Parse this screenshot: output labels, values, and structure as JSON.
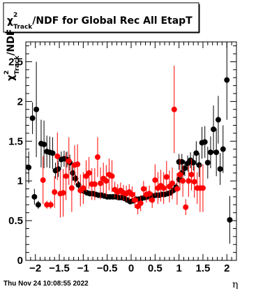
{
  "chart_data": {
    "type": "scatter",
    "title": {
      "chi": "χ",
      "sup": "2",
      "sub": "Track",
      "rest": "/NDF for Global Rec All EtapT"
    },
    "xlabel": "η",
    "ylabel": {
      "chi": "χ",
      "sup": "2",
      "sub": "Track",
      "rest": "/NDF"
    },
    "xlim": [
      -2.2,
      2.2
    ],
    "ylim": [
      0,
      2.75
    ],
    "xticks": [
      -2,
      -1.5,
      -1,
      -0.5,
      0,
      0.5,
      1,
      1.5,
      2
    ],
    "xtick_labels": [
      "−2",
      "−1.5",
      "−1",
      "−0.5",
      "0",
      "0.5",
      "1",
      "1.5",
      "2"
    ],
    "yticks": [
      0,
      0.5,
      1,
      1.5,
      2,
      2.5
    ],
    "ytick_labels": [
      "0",
      "0.5",
      "1",
      "1.5",
      "2",
      "2.5"
    ],
    "grid": false,
    "timestamp": "Thu Nov 24 10:08:55 2022",
    "series": [
      {
        "color": "#000000",
        "points": [
          {
            "x": -2.14,
            "y": 1.17,
            "e": 0.2
          },
          {
            "x": -2.06,
            "y": 1.79,
            "e": 0.2
          },
          {
            "x": -2.02,
            "y": 0.8,
            "e": 0.1
          },
          {
            "x": -1.98,
            "y": 1.9,
            "e": 0.6
          },
          {
            "x": -1.94,
            "y": 0.7,
            "e": 0.05
          },
          {
            "x": -1.88,
            "y": 1.47,
            "e": 0.3
          },
          {
            "x": -1.82,
            "y": 1.46,
            "e": 0.3
          },
          {
            "x": -1.76,
            "y": 1.37,
            "e": 0.2
          },
          {
            "x": -1.7,
            "y": 1.36,
            "e": 0.2
          },
          {
            "x": -1.64,
            "y": 1.35,
            "e": 0.2
          },
          {
            "x": -1.58,
            "y": 1.13,
            "e": 0.1
          },
          {
            "x": -1.52,
            "y": 1.15,
            "e": 0.1
          },
          {
            "x": -1.46,
            "y": 1.27,
            "e": 0.1
          },
          {
            "x": -1.4,
            "y": 1.28,
            "e": 0.1
          },
          {
            "x": -1.34,
            "y": 1.27,
            "e": 0.1
          },
          {
            "x": -1.28,
            "y": 1.23,
            "e": 0.1
          },
          {
            "x": -1.22,
            "y": 1.1,
            "e": 0.1
          },
          {
            "x": -1.16,
            "y": 1.03,
            "e": 0.05
          },
          {
            "x": -1.1,
            "y": 0.95,
            "e": 0.05
          },
          {
            "x": -1.04,
            "y": 0.88,
            "e": 0.03
          },
          {
            "x": -0.98,
            "y": 0.87,
            "e": 0.03
          },
          {
            "x": -0.92,
            "y": 0.85,
            "e": 0.03
          },
          {
            "x": -0.86,
            "y": 0.84,
            "e": 0.03
          },
          {
            "x": -0.8,
            "y": 0.84,
            "e": 0.03
          },
          {
            "x": -0.74,
            "y": 0.83,
            "e": 0.03
          },
          {
            "x": -0.68,
            "y": 0.82,
            "e": 0.03
          },
          {
            "x": -0.62,
            "y": 0.82,
            "e": 0.03
          },
          {
            "x": -0.56,
            "y": 0.81,
            "e": 0.03
          },
          {
            "x": -0.5,
            "y": 0.8,
            "e": 0.03
          },
          {
            "x": -0.44,
            "y": 0.8,
            "e": 0.03
          },
          {
            "x": -0.38,
            "y": 0.8,
            "e": 0.03
          },
          {
            "x": -0.32,
            "y": 0.8,
            "e": 0.03
          },
          {
            "x": -0.26,
            "y": 0.79,
            "e": 0.03
          },
          {
            "x": -0.2,
            "y": 0.79,
            "e": 0.03
          },
          {
            "x": -0.14,
            "y": 0.78,
            "e": 0.03
          },
          {
            "x": -0.08,
            "y": 0.76,
            "e": 0.03
          },
          {
            "x": -0.02,
            "y": 0.74,
            "e": 0.03
          },
          {
            "x": 0.04,
            "y": 0.75,
            "e": 0.03
          },
          {
            "x": 0.1,
            "y": 0.77,
            "e": 0.03
          },
          {
            "x": 0.16,
            "y": 0.77,
            "e": 0.03
          },
          {
            "x": 0.22,
            "y": 0.78,
            "e": 0.03
          },
          {
            "x": 0.28,
            "y": 0.79,
            "e": 0.03
          },
          {
            "x": 0.34,
            "y": 0.8,
            "e": 0.03
          },
          {
            "x": 0.4,
            "y": 0.8,
            "e": 0.03
          },
          {
            "x": 0.46,
            "y": 0.81,
            "e": 0.03
          },
          {
            "x": 0.52,
            "y": 0.82,
            "e": 0.03
          },
          {
            "x": 0.58,
            "y": 0.82,
            "e": 0.03
          },
          {
            "x": 0.64,
            "y": 0.83,
            "e": 0.03
          },
          {
            "x": 0.7,
            "y": 0.83,
            "e": 0.03
          },
          {
            "x": 0.76,
            "y": 0.84,
            "e": 0.03
          },
          {
            "x": 0.82,
            "y": 0.85,
            "e": 0.03
          },
          {
            "x": 0.88,
            "y": 0.88,
            "e": 0.03
          },
          {
            "x": 0.94,
            "y": 0.92,
            "e": 0.05
          },
          {
            "x": 1.0,
            "y": 1.02,
            "e": 0.05
          },
          {
            "x": 1.06,
            "y": 1.1,
            "e": 0.1
          },
          {
            "x": 1.12,
            "y": 1.16,
            "e": 0.1
          },
          {
            "x": 1.18,
            "y": 1.22,
            "e": 0.1
          },
          {
            "x": 1.0,
            "y": 1.24,
            "e": 0.1
          },
          {
            "x": 1.06,
            "y": 1.24,
            "e": 0.1
          },
          {
            "x": 1.24,
            "y": 1.26,
            "e": 0.1
          },
          {
            "x": 1.3,
            "y": 1.23,
            "e": 0.1
          },
          {
            "x": 1.36,
            "y": 1.35,
            "e": 0.15
          },
          {
            "x": 1.42,
            "y": 1.2,
            "e": 0.15
          },
          {
            "x": 1.48,
            "y": 1.48,
            "e": 0.2
          },
          {
            "x": 1.54,
            "y": 1.49,
            "e": 0.2
          },
          {
            "x": 1.6,
            "y": 1.23,
            "e": 0.2
          },
          {
            "x": 1.66,
            "y": 1.36,
            "e": 0.2
          },
          {
            "x": 1.72,
            "y": 1.65,
            "e": 0.3
          },
          {
            "x": 1.78,
            "y": 1.36,
            "e": 0.3
          },
          {
            "x": 1.82,
            "y": 1.77,
            "e": 0.3
          },
          {
            "x": 1.86,
            "y": 1.15,
            "e": 0.2
          },
          {
            "x": 1.92,
            "y": 1.4,
            "e": 0.3
          },
          {
            "x": 2.0,
            "y": 2.27,
            "e": 0.5
          },
          {
            "x": 2.06,
            "y": 0.51,
            "e": 0.3
          }
        ]
      },
      {
        "color": "#ff0000",
        "points": [
          {
            "x": -1.84,
            "y": 1.01,
            "e": 0.3
          },
          {
            "x": -1.76,
            "y": 0.7,
            "e": 0.05
          },
          {
            "x": -1.68,
            "y": 0.7,
            "e": 0.05
          },
          {
            "x": -1.6,
            "y": 0.86,
            "e": 0.2
          },
          {
            "x": -1.54,
            "y": 1.31,
            "e": 0.3
          },
          {
            "x": -1.48,
            "y": 0.84,
            "e": 0.3
          },
          {
            "x": -1.42,
            "y": 0.85,
            "e": 0.3
          },
          {
            "x": -1.36,
            "y": 1.06,
            "e": 0.3
          },
          {
            "x": -1.3,
            "y": 1.25,
            "e": 0.3
          },
          {
            "x": -1.24,
            "y": 0.91,
            "e": 0.3
          },
          {
            "x": -1.18,
            "y": 1.2,
            "e": 0.25
          },
          {
            "x": -1.12,
            "y": 1.21,
            "e": 0.25
          },
          {
            "x": -1.06,
            "y": 0.88,
            "e": 0.2
          },
          {
            "x": -1.0,
            "y": 0.91,
            "e": 0.2
          },
          {
            "x": -0.94,
            "y": 1.06,
            "e": 0.2
          },
          {
            "x": -0.88,
            "y": 1.1,
            "e": 0.2
          },
          {
            "x": -0.82,
            "y": 0.96,
            "e": 0.2
          },
          {
            "x": -0.76,
            "y": 0.96,
            "e": 0.2
          },
          {
            "x": -0.7,
            "y": 1.3,
            "e": 0.25
          },
          {
            "x": -0.64,
            "y": 0.97,
            "e": 0.2
          },
          {
            "x": -0.58,
            "y": 1.03,
            "e": 0.2
          },
          {
            "x": -0.52,
            "y": 1.0,
            "e": 0.2
          },
          {
            "x": -0.46,
            "y": 1.08,
            "e": 0.2
          },
          {
            "x": -0.4,
            "y": 1.06,
            "e": 0.2
          },
          {
            "x": -0.34,
            "y": 0.89,
            "e": 0.1
          },
          {
            "x": -0.28,
            "y": 0.86,
            "e": 0.1
          },
          {
            "x": -0.22,
            "y": 0.88,
            "e": 0.1
          },
          {
            "x": -0.16,
            "y": 0.85,
            "e": 0.1
          },
          {
            "x": -0.1,
            "y": 0.84,
            "e": 0.1
          },
          {
            "x": -0.04,
            "y": 0.86,
            "e": 0.1
          },
          {
            "x": 0.02,
            "y": 0.83,
            "e": 0.1
          },
          {
            "x": 0.08,
            "y": 0.76,
            "e": 0.1
          },
          {
            "x": 0.14,
            "y": 0.68,
            "e": 0.1
          },
          {
            "x": 0.2,
            "y": 0.72,
            "e": 0.1
          },
          {
            "x": 0.26,
            "y": 0.9,
            "e": 0.1
          },
          {
            "x": 0.32,
            "y": 0.83,
            "e": 0.1
          },
          {
            "x": 0.38,
            "y": 0.84,
            "e": 0.1
          },
          {
            "x": 0.44,
            "y": 0.76,
            "e": 0.1
          },
          {
            "x": 0.5,
            "y": 1.01,
            "e": 0.2
          },
          {
            "x": 0.56,
            "y": 0.91,
            "e": 0.2
          },
          {
            "x": 0.62,
            "y": 0.94,
            "e": 0.2
          },
          {
            "x": 0.68,
            "y": 0.91,
            "e": 0.2
          },
          {
            "x": 0.74,
            "y": 1.05,
            "e": 0.2
          },
          {
            "x": 0.8,
            "y": 0.93,
            "e": 0.2
          },
          {
            "x": 0.86,
            "y": 0.97,
            "e": 0.2
          },
          {
            "x": 0.9,
            "y": 1.9,
            "e": 0.55
          },
          {
            "x": 0.96,
            "y": 0.9,
            "e": 0.2
          },
          {
            "x": 1.02,
            "y": 1.08,
            "e": 0.2
          },
          {
            "x": 1.08,
            "y": 1.0,
            "e": 0.2
          },
          {
            "x": 1.14,
            "y": 0.67,
            "e": 0.1
          },
          {
            "x": 1.2,
            "y": 1.0,
            "e": 0.2
          },
          {
            "x": 1.26,
            "y": 1.08,
            "e": 0.2
          },
          {
            "x": 1.32,
            "y": 0.99,
            "e": 0.2
          },
          {
            "x": 1.38,
            "y": 0.91,
            "e": 0.2
          },
          {
            "x": 1.44,
            "y": 0.91,
            "e": 0.3
          },
          {
            "x": 1.5,
            "y": 0.91,
            "e": 0.3
          }
        ]
      }
    ]
  }
}
